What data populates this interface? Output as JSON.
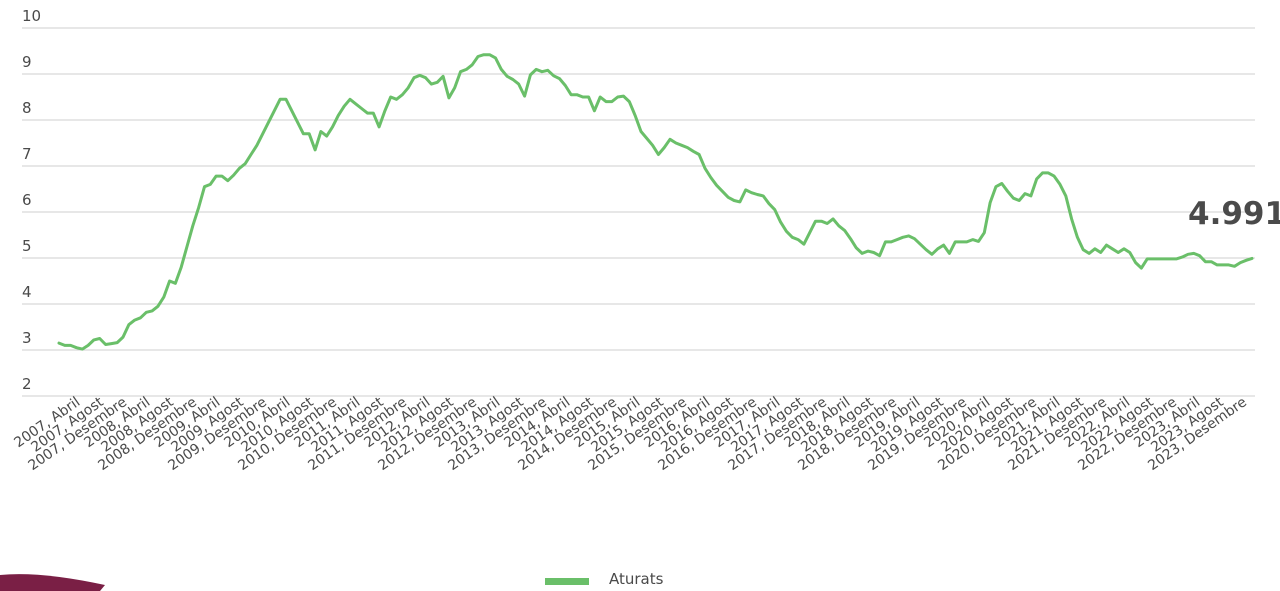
{
  "chart_data": {
    "type": "line",
    "callout_value": "4.991",
    "y_ticks": [
      "2",
      "3",
      "4",
      "5",
      "6",
      "7",
      "8",
      "9",
      "10"
    ],
    "ylim": [
      2,
      10
    ],
    "grid": true,
    "legend_position": "bottom-center",
    "colors": {
      "series": "#6abf69",
      "text": "#4a4a4a",
      "grid": "#cfcfcf",
      "corner": "#7a1f45"
    },
    "x_tick_labels": [
      "2007, Abril",
      "2007, Agost",
      "2007, Desembre",
      "2008, Abril",
      "2008, Agost",
      "2008, Desembre",
      "2009, Abril",
      "2009, Agost",
      "2009, Desembre",
      "2010, Abril",
      "2010, Agost",
      "2010, Desembre",
      "2011, Abril",
      "2011, Agost",
      "2011, Desembre",
      "2012, Abril",
      "2012, Agost",
      "2012, Desembre",
      "2013, Abril",
      "2013, Agost",
      "2013, Desembre",
      "2014, Abril",
      "2014, Agost",
      "2014, Desembre",
      "2015, Abril",
      "2015, Agost",
      "2015, Desembre",
      "2016, Abril",
      "2016, Agost",
      "2016, Desembre",
      "2017, Abril",
      "2017, Agost",
      "2017, Desembre",
      "2018, Abril",
      "2018, Agost",
      "2018, Desembre",
      "2019, Abril",
      "2019, Agost",
      "2019, Desembre",
      "2020, Abril",
      "2020, Agost",
      "2020, Desembre",
      "2021, Abril",
      "2021, Agost",
      "2021, Desembre",
      "2022, Abril",
      "2022, Agost",
      "2022, Desembre",
      "2023, Abril",
      "2023, Agost",
      "2023, Desembre"
    ],
    "series": [
      {
        "name": "Aturats",
        "values": [
          3.15,
          3.1,
          3.1,
          3.05,
          3.02,
          3.1,
          3.22,
          3.25,
          3.12,
          3.14,
          3.16,
          3.28,
          3.55,
          3.65,
          3.7,
          3.82,
          3.85,
          3.95,
          4.15,
          4.5,
          4.45,
          4.8,
          5.25,
          5.7,
          6.1,
          6.55,
          6.6,
          6.78,
          6.78,
          6.68,
          6.8,
          6.95,
          7.05,
          7.25,
          7.45,
          7.7,
          7.95,
          8.2,
          8.45,
          8.45,
          8.2,
          7.95,
          7.7,
          7.7,
          7.35,
          7.75,
          7.65,
          7.85,
          8.1,
          8.3,
          8.45,
          8.35,
          8.25,
          8.15,
          8.15,
          7.85,
          8.2,
          8.5,
          8.45,
          8.55,
          8.7,
          8.92,
          8.97,
          8.92,
          8.78,
          8.82,
          8.95,
          8.48,
          8.7,
          9.05,
          9.1,
          9.2,
          9.38,
          9.42,
          9.42,
          9.35,
          9.1,
          8.95,
          8.88,
          8.78,
          8.52,
          8.98,
          9.1,
          9.05,
          9.08,
          8.96,
          8.9,
          8.75,
          8.55,
          8.55,
          8.5,
          8.5,
          8.2,
          8.5,
          8.4,
          8.4,
          8.5,
          8.52,
          8.4,
          8.1,
          7.75,
          7.6,
          7.45,
          7.25,
          7.4,
          7.58,
          7.5,
          7.45,
          7.4,
          7.32,
          7.25,
          6.95,
          6.75,
          6.58,
          6.45,
          6.32,
          6.25,
          6.22,
          6.48,
          6.42,
          6.38,
          6.35,
          6.18,
          6.05,
          5.78,
          5.58,
          5.45,
          5.4,
          5.3,
          5.55,
          5.8,
          5.8,
          5.75,
          5.85,
          5.7,
          5.6,
          5.42,
          5.22,
          5.1,
          5.15,
          5.12,
          5.05,
          5.35,
          5.35,
          5.4,
          5.45,
          5.48,
          5.42,
          5.3,
          5.18,
          5.08,
          5.2,
          5.28,
          5.1,
          5.35,
          5.35,
          5.35,
          5.4,
          5.36,
          5.55,
          6.2,
          6.55,
          6.62,
          6.45,
          6.3,
          6.25,
          6.4,
          6.35,
          6.72,
          6.85,
          6.85,
          6.78,
          6.6,
          6.35,
          5.85,
          5.45,
          5.18,
          5.1,
          5.2,
          5.12,
          5.28,
          5.2,
          5.12,
          5.2,
          5.12,
          4.9,
          4.78,
          4.98,
          4.98,
          4.98,
          4.98,
          4.98,
          4.98,
          5.02,
          5.08,
          5.1,
          5.05,
          4.92,
          4.92,
          4.85,
          4.85,
          4.85,
          4.82,
          4.9,
          4.95,
          4.991
        ]
      }
    ]
  }
}
